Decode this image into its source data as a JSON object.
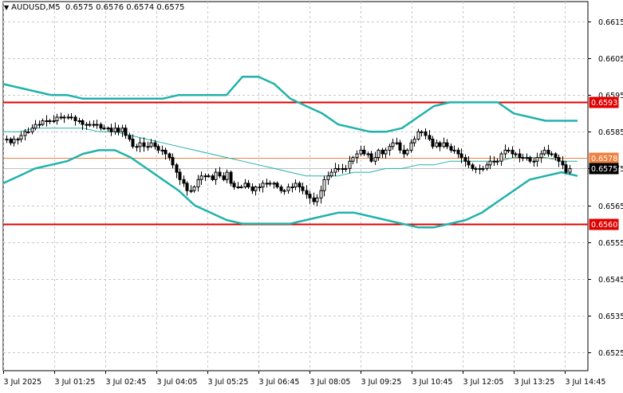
{
  "header": {
    "symbol": "AUDUSD,M5",
    "ohlc": "0.6575 0.6576 0.6574 0.6575"
  },
  "colors": {
    "background": "#ffffff",
    "grid": "#c8c8c8",
    "candle": "#000000",
    "bollinger": "#20b2aa",
    "resistance_line": "#e00000",
    "support_line": "#e00000",
    "orange_line": "#f08040",
    "current_price_line": "#c0c0c0",
    "label_text_on_red": "#ffffff"
  },
  "chart_data": {
    "type": "candlestick",
    "title": "AUDUSD,M5",
    "ylim": [
      0.6518,
      0.6624
    ],
    "y_ticks": [
      "0.6615",
      "0.6605",
      "0.6595",
      "0.6585",
      "0.6575",
      "0.6565",
      "0.6555",
      "0.6545",
      "0.6535",
      "0.6525"
    ],
    "x_tick_labels": [
      "3 Jul 2025",
      "3 Jul 01:25",
      "3 Jul 02:45",
      "3 Jul 04:05",
      "3 Jul 05:25",
      "3 Jul 06:45",
      "3 Jul 08:05",
      "3 Jul 09:25",
      "3 Jul 10:45",
      "3 Jul 12:05",
      "3 Jul 13:25",
      "3 Jul 14:45"
    ],
    "grid": true,
    "horizontal_lines": [
      {
        "label": "0.6593",
        "value": 0.6593,
        "style": "red-box"
      },
      {
        "label": "0.6578",
        "value": 0.6578,
        "style": "orange-box"
      },
      {
        "label": "0.6575",
        "value": 0.6575,
        "style": "black-box"
      },
      {
        "label": "0.6560",
        "value": 0.656,
        "style": "red-box"
      }
    ],
    "closes": [
      0.6583,
      0.6582,
      0.6583,
      0.6583,
      0.6584,
      0.6585,
      0.6585,
      0.6586,
      0.6587,
      0.6587,
      0.6588,
      0.6588,
      0.6588,
      0.6588,
      0.6589,
      0.6589,
      0.6589,
      0.6589,
      0.6589,
      0.6588,
      0.6588,
      0.6587,
      0.6587,
      0.6587,
      0.6587,
      0.6587,
      0.6586,
      0.6586,
      0.6586,
      0.6585,
      0.6586,
      0.6585,
      0.6586,
      0.6584,
      0.6583,
      0.6581,
      0.6581,
      0.6582,
      0.6581,
      0.6581,
      0.6582,
      0.6581,
      0.658,
      0.658,
      0.6579,
      0.6578,
      0.6576,
      0.6574,
      0.6572,
      0.6571,
      0.6569,
      0.6569,
      0.657,
      0.6572,
      0.6573,
      0.6573,
      0.6573,
      0.6572,
      0.6574,
      0.6573,
      0.6572,
      0.6574,
      0.6571,
      0.657,
      0.657,
      0.657,
      0.6571,
      0.657,
      0.6569,
      0.657,
      0.657,
      0.6571,
      0.6571,
      0.6571,
      0.6571,
      0.657,
      0.6569,
      0.6569,
      0.657,
      0.657,
      0.6571,
      0.657,
      0.6569,
      0.6568,
      0.6567,
      0.6566,
      0.6567,
      0.6569,
      0.6572,
      0.6573,
      0.6574,
      0.6575,
      0.6575,
      0.6575,
      0.6575,
      0.6577,
      0.6578,
      0.6579,
      0.658,
      0.6579,
      0.6579,
      0.6577,
      0.6578,
      0.658,
      0.6579,
      0.658,
      0.6581,
      0.6582,
      0.6582,
      0.658,
      0.6579,
      0.658,
      0.6582,
      0.6583,
      0.6585,
      0.6585,
      0.6584,
      0.6583,
      0.6581,
      0.6582,
      0.6581,
      0.6582,
      0.6581,
      0.658,
      0.658,
      0.6579,
      0.6578,
      0.6577,
      0.6576,
      0.6575,
      0.6575,
      0.6575,
      0.6575,
      0.6576,
      0.6577,
      0.6577,
      0.6577,
      0.6579,
      0.658,
      0.658,
      0.6579,
      0.6579,
      0.6578,
      0.6578,
      0.6578,
      0.6577,
      0.6577,
      0.6578,
      0.6579,
      0.658,
      0.6579,
      0.6579,
      0.6578,
      0.6577,
      0.6576,
      0.6574,
      0.6575
    ],
    "bollinger_upper": [
      0.6598,
      0.6597,
      0.6596,
      0.6595,
      0.6595,
      0.6594,
      0.6594,
      0.6594,
      0.6594,
      0.6594,
      0.6594,
      0.6595,
      0.6595,
      0.6595,
      0.6595,
      0.66,
      0.66,
      0.6598,
      0.6594,
      0.6592,
      0.659,
      0.6587,
      0.6586,
      0.6585,
      0.6585,
      0.6586,
      0.6589,
      0.6592,
      0.6593,
      0.6593,
      0.6593,
      0.6593,
      0.659,
      0.6589,
      0.6588,
      0.6588,
      0.6588
    ],
    "bollinger_middle": [
      0.6585,
      0.6585,
      0.6586,
      0.6586,
      0.6586,
      0.6586,
      0.6585,
      0.6585,
      0.6584,
      0.6583,
      0.6582,
      0.6581,
      0.658,
      0.6579,
      0.6578,
      0.6577,
      0.6576,
      0.6575,
      0.6574,
      0.6573,
      0.6573,
      0.6573,
      0.6574,
      0.6574,
      0.6575,
      0.6575,
      0.6576,
      0.6576,
      0.6577,
      0.6577,
      0.6577,
      0.6577,
      0.6578,
      0.6578,
      0.6578,
      0.6577,
      0.6577
    ],
    "bollinger_lower": [
      0.6571,
      0.6573,
      0.6575,
      0.6576,
      0.6577,
      0.6579,
      0.658,
      0.658,
      0.6578,
      0.6575,
      0.6572,
      0.6569,
      0.6565,
      0.6563,
      0.6561,
      0.656,
      0.656,
      0.656,
      0.656,
      0.6561,
      0.6562,
      0.6563,
      0.6563,
      0.6562,
      0.6561,
      0.656,
      0.6559,
      0.6559,
      0.656,
      0.6561,
      0.6563,
      0.6566,
      0.6569,
      0.6572,
      0.6573,
      0.6574,
      0.6573
    ]
  }
}
